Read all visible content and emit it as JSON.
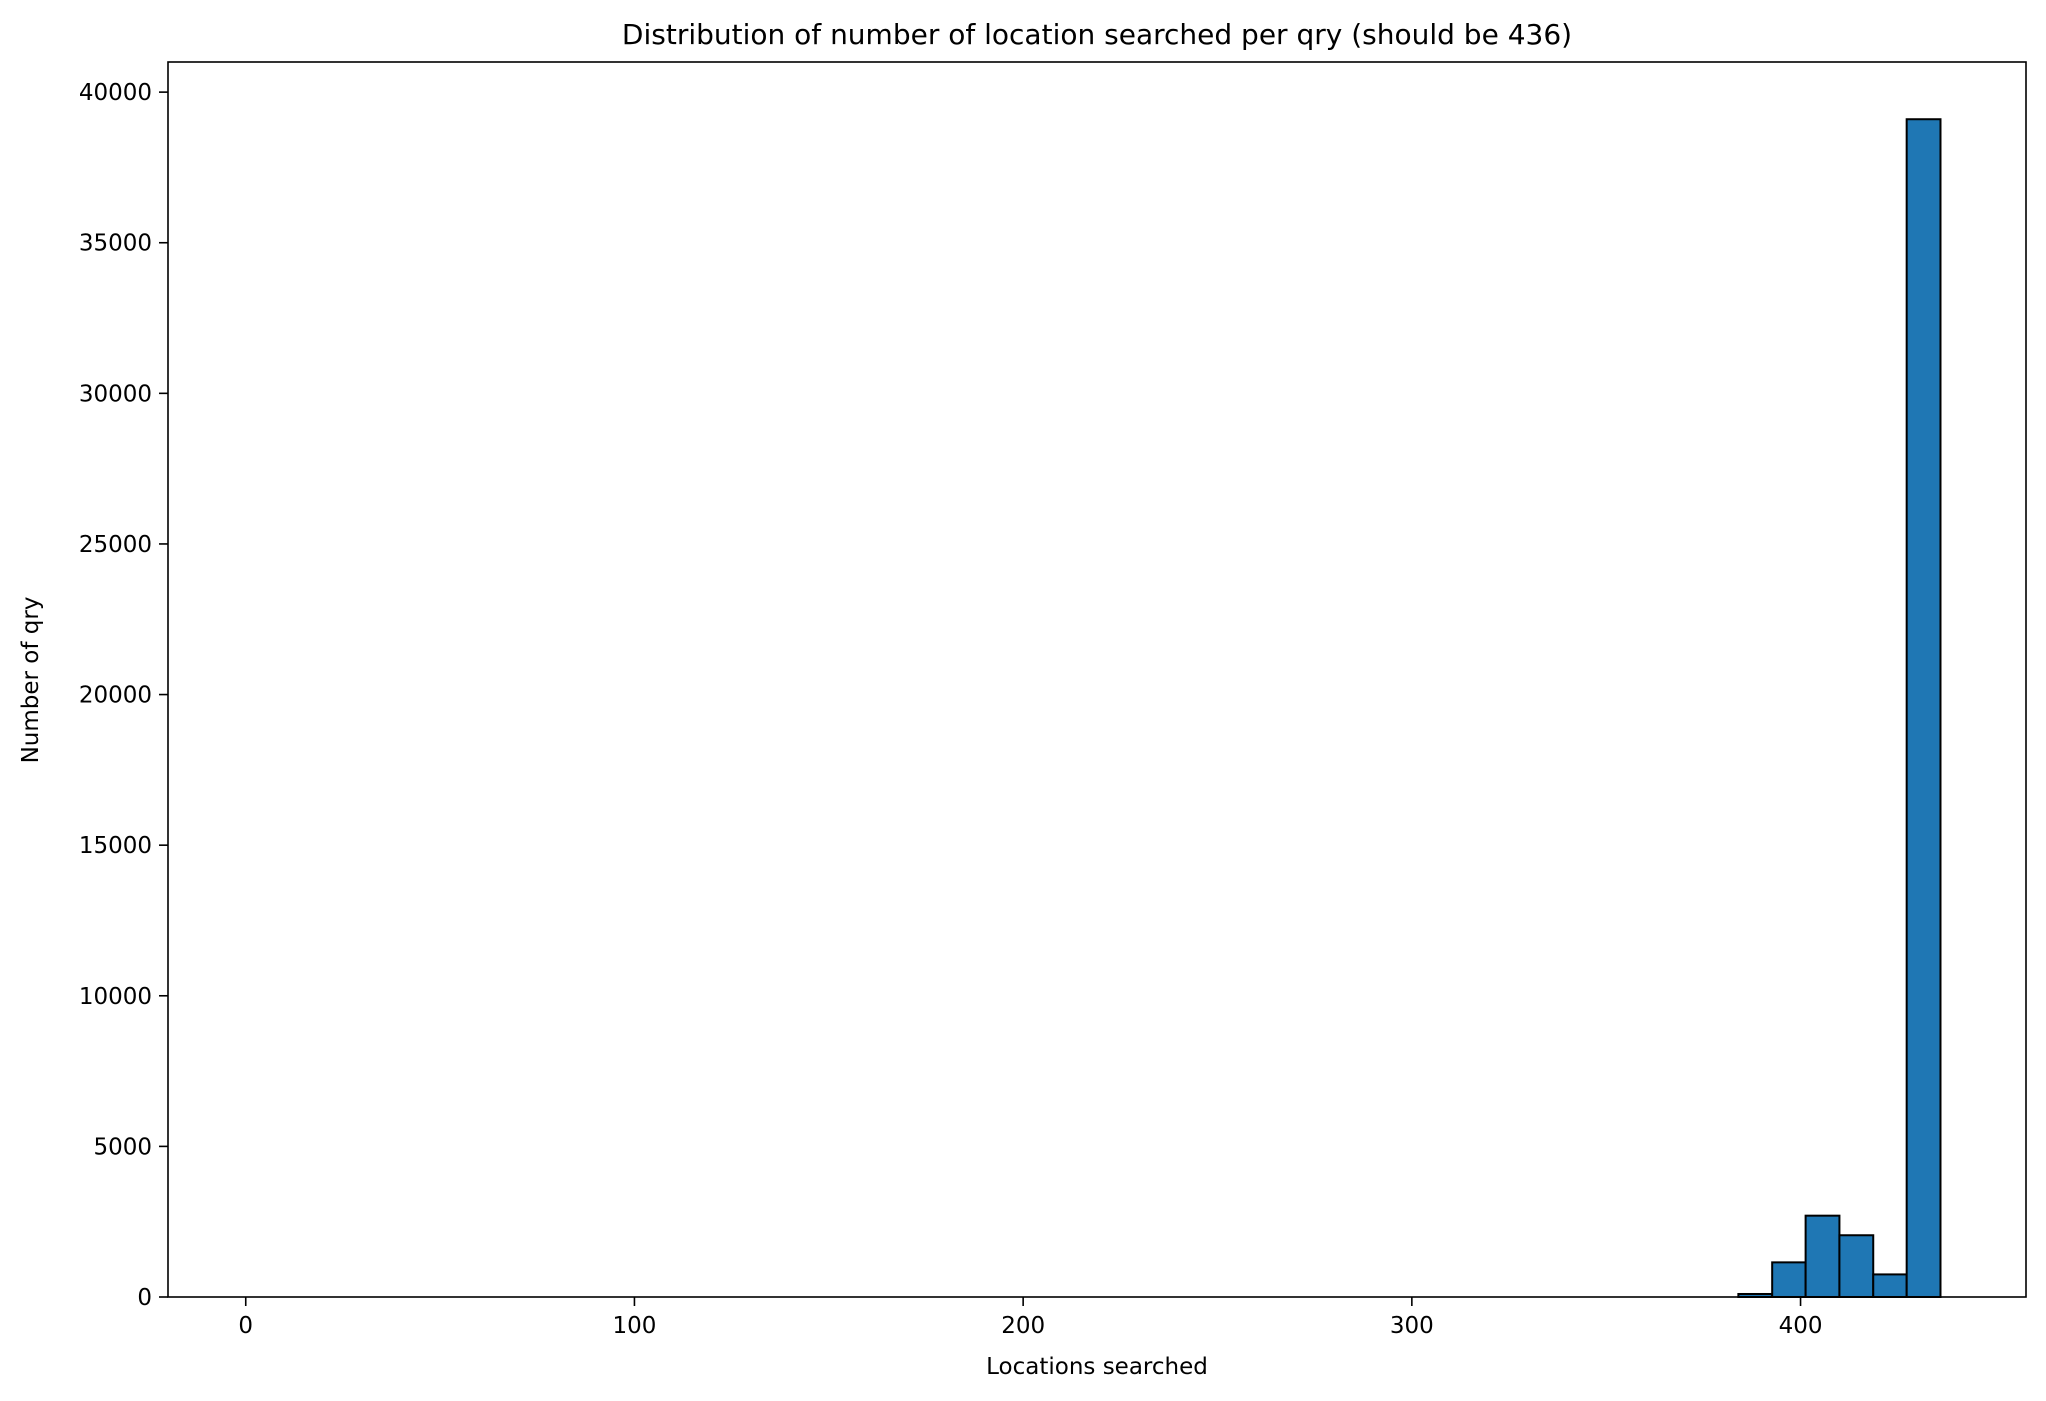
{
  "chart_data": {
    "type": "bar",
    "title": "Distribution of number of location searched per qry (should be 436)",
    "xlabel": "Locations searched",
    "ylabel": "Number of qry",
    "xlim": [
      -20,
      458
    ],
    "ylim": [
      0,
      41000
    ],
    "xticks": [
      "0",
      "100",
      "200",
      "300",
      "400"
    ],
    "yticks": [
      "0",
      "5000",
      "10000",
      "15000",
      "20000",
      "25000",
      "30000",
      "35000",
      "40000"
    ],
    "grid": false,
    "legend": "none",
    "bins": [
      {
        "start": 384,
        "end": 392.7,
        "value": 100
      },
      {
        "start": 392.7,
        "end": 401.3,
        "value": 1150
      },
      {
        "start": 401.3,
        "end": 410,
        "value": 2700
      },
      {
        "start": 410,
        "end": 418.7,
        "value": 2050
      },
      {
        "start": 418.7,
        "end": 427.3,
        "value": 750
      },
      {
        "start": 427.3,
        "end": 436,
        "value": 39100
      }
    ],
    "colors": {
      "bar_fill": "#1f77b4",
      "bar_edge": "#000000",
      "axis": "#000000"
    }
  }
}
